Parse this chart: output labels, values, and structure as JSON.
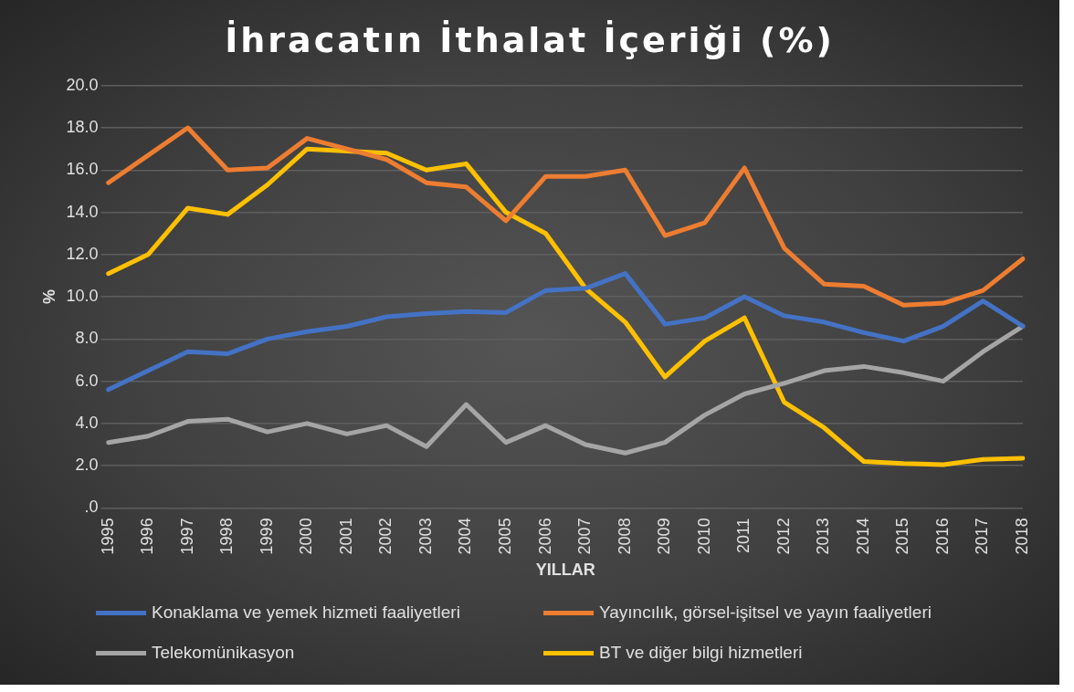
{
  "chart_data": {
    "type": "line",
    "title": "İhracatın İthalat İçeriği (%)",
    "xlabel": "YILLAR",
    "ylabel": "%",
    "categories": [
      "1995",
      "1996",
      "1997",
      "1998",
      "1999",
      "2000",
      "2001",
      "2002",
      "2003",
      "2004",
      "2005",
      "2006",
      "2007",
      "2008",
      "2009",
      "2010",
      "2011",
      "2012",
      "2013",
      "2014",
      "2015",
      "2016",
      "2017",
      "2018"
    ],
    "series": [
      {
        "name": "Konaklama ve yemek hizmeti faaliyetleri",
        "color": "#4472c4",
        "values": [
          5.6,
          6.5,
          7.4,
          7.3,
          8.0,
          8.35,
          8.6,
          9.05,
          9.2,
          9.3,
          9.25,
          10.3,
          10.4,
          11.1,
          8.7,
          9.0,
          10.0,
          9.1,
          8.8,
          8.3,
          7.9,
          8.6,
          9.8,
          8.6
        ]
      },
      {
        "name": "Yayıncılık, görsel-işitsel ve yayın faaliyetleri",
        "color": "#ed7d31",
        "values": [
          15.4,
          16.7,
          18.0,
          16.0,
          16.1,
          17.5,
          17.0,
          16.5,
          15.4,
          15.2,
          13.6,
          15.7,
          15.7,
          16.0,
          12.9,
          13.5,
          16.1,
          12.3,
          10.6,
          10.5,
          9.6,
          9.7,
          10.3,
          11.8
        ]
      },
      {
        "name": "Telekomünikasyon",
        "color": "#a5a5a5",
        "values": [
          3.1,
          3.4,
          4.1,
          4.2,
          3.6,
          4.0,
          3.5,
          3.9,
          2.9,
          4.9,
          3.1,
          3.9,
          3.0,
          2.6,
          3.1,
          4.4,
          5.4,
          5.9,
          6.5,
          6.7,
          6.4,
          6.0,
          7.4,
          8.6
        ]
      },
      {
        "name": "BT ve diğer bilgi hizmetleri",
        "color": "#ffc000",
        "values": [
          11.1,
          12.0,
          14.2,
          13.9,
          15.3,
          17.0,
          16.9,
          16.8,
          16.0,
          16.3,
          14.0,
          13.0,
          10.4,
          8.8,
          6.2,
          7.9,
          9.0,
          5.0,
          3.8,
          2.2,
          2.1,
          2.05,
          2.3,
          2.35
        ]
      }
    ],
    "ylim": [
      0,
      20
    ],
    "yticks": [
      {
        "value": 0,
        "label": ".0"
      },
      {
        "value": 2,
        "label": "2.0"
      },
      {
        "value": 4,
        "label": "4.0"
      },
      {
        "value": 6,
        "label": "6.0"
      },
      {
        "value": 8,
        "label": "8.0"
      },
      {
        "value": 10,
        "label": "10.0"
      },
      {
        "value": 12,
        "label": "12.0"
      },
      {
        "value": 14,
        "label": "14.0"
      },
      {
        "value": 16,
        "label": "16.0"
      },
      {
        "value": 18,
        "label": "18.0"
      },
      {
        "value": 20,
        "label": "20.0"
      }
    ],
    "grid": "y",
    "legend": "bottom",
    "marker": "none",
    "line_style": "solid"
  }
}
